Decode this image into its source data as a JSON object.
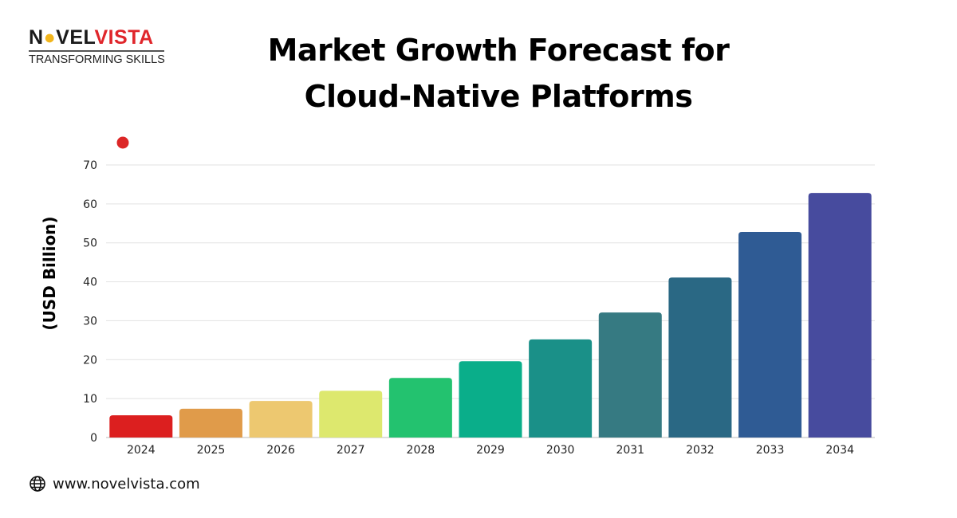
{
  "logo": {
    "brand_part1": "N",
    "brand_part2": "VEL",
    "brand_part3": "VISTA",
    "tagline": "TRANSFORMING SKILLS"
  },
  "title_line1": "Market Growth Forecast for",
  "title_line2": "Cloud-Native Platforms",
  "footer": {
    "icon": "globe-icon",
    "url": "www.novelvista.com"
  },
  "chart_data": {
    "type": "bar",
    "title": "Market Growth Forecast for Cloud-Native Platforms",
    "xlabel": "",
    "ylabel": "(USD Billion)",
    "ylim": [
      0,
      70
    ],
    "yticks": [
      0,
      10,
      20,
      30,
      40,
      50,
      60,
      70
    ],
    "grid": true,
    "legend_marker_color": "#dc2626",
    "categories": [
      "2024",
      "2025",
      "2026",
      "2027",
      "2028",
      "2029",
      "2030",
      "2031",
      "2032",
      "2033",
      "2034"
    ],
    "values": [
      5.7,
      7.4,
      9.4,
      12.0,
      15.3,
      19.6,
      25.2,
      32.1,
      41.1,
      52.8,
      62.8
    ],
    "colors": [
      "#dc1f1f",
      "#e09b4a",
      "#edc870",
      "#dde86e",
      "#23c26f",
      "#0aae8a",
      "#1a9088",
      "#367a82",
      "#2a6884",
      "#2f5b94",
      "#474b9e"
    ]
  }
}
